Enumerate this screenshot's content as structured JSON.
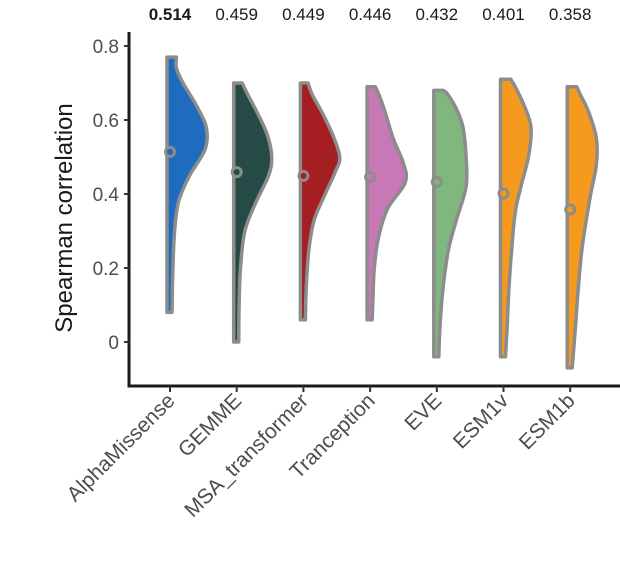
{
  "chart_data": {
    "type": "violin",
    "title": "",
    "xlabel": "",
    "ylabel": "Spearman correlation",
    "ylim": [
      -0.11,
      0.82
    ],
    "yticks": [
      0,
      0.2,
      0.4,
      0.6,
      0.8
    ],
    "ytick_labels": [
      "0",
      "0.2",
      "0.4",
      "0.6",
      "0.8"
    ],
    "grid": false,
    "legend": "none",
    "categories": [
      "AlphaMissense",
      "GEMME",
      "MSA_transformer",
      "Tranception",
      "EVE",
      "ESM1v",
      "ESM1b"
    ],
    "mean_labels": [
      "0.514",
      "0.459",
      "0.449",
      "0.446",
      "0.432",
      "0.401",
      "0.358"
    ],
    "bold_label_index": 0,
    "series": [
      {
        "name": "AlphaMissense",
        "color": "#1f6bbf",
        "mean": 0.514,
        "min": 0.08,
        "max": 0.77,
        "density": [
          [
            0.08,
            0.0
          ],
          [
            0.2,
            0.02
          ],
          [
            0.3,
            0.06
          ],
          [
            0.38,
            0.15
          ],
          [
            0.45,
            0.4
          ],
          [
            0.52,
            0.75
          ],
          [
            0.58,
            0.78
          ],
          [
            0.64,
            0.55
          ],
          [
            0.7,
            0.25
          ],
          [
            0.74,
            0.1
          ],
          [
            0.77,
            0.1
          ]
        ]
      },
      {
        "name": "GEMME",
        "color": "#264a46",
        "mean": 0.459,
        "min": 0.0,
        "max": 0.7,
        "density": [
          [
            0.0,
            0.0
          ],
          [
            0.1,
            0.01
          ],
          [
            0.2,
            0.04
          ],
          [
            0.3,
            0.14
          ],
          [
            0.38,
            0.4
          ],
          [
            0.45,
            0.68
          ],
          [
            0.5,
            0.75
          ],
          [
            0.56,
            0.65
          ],
          [
            0.62,
            0.42
          ],
          [
            0.67,
            0.2
          ],
          [
            0.7,
            0.08
          ]
        ]
      },
      {
        "name": "MSA_transformer",
        "color": "#a51e22",
        "mean": 0.449,
        "min": 0.06,
        "max": 0.7,
        "density": [
          [
            0.06,
            0.0
          ],
          [
            0.15,
            0.02
          ],
          [
            0.25,
            0.08
          ],
          [
            0.33,
            0.2
          ],
          [
            0.4,
            0.45
          ],
          [
            0.46,
            0.68
          ],
          [
            0.5,
            0.78
          ],
          [
            0.56,
            0.62
          ],
          [
            0.62,
            0.38
          ],
          [
            0.67,
            0.15
          ],
          [
            0.7,
            0.06
          ]
        ]
      },
      {
        "name": "Tranception",
        "color": "#c878b4",
        "mean": 0.446,
        "min": 0.06,
        "max": 0.69,
        "density": [
          [
            0.06,
            0.0
          ],
          [
            0.12,
            0.02
          ],
          [
            0.2,
            0.05
          ],
          [
            0.28,
            0.14
          ],
          [
            0.36,
            0.35
          ],
          [
            0.43,
            0.75
          ],
          [
            0.48,
            0.72
          ],
          [
            0.55,
            0.48
          ],
          [
            0.62,
            0.3
          ],
          [
            0.67,
            0.15
          ],
          [
            0.69,
            0.07
          ]
        ]
      },
      {
        "name": "EVE",
        "color": "#7fb77e",
        "mean": 0.432,
        "min": -0.04,
        "max": 0.68,
        "density": [
          [
            -0.04,
            0.0
          ],
          [
            0.05,
            0.03
          ],
          [
            0.15,
            0.1
          ],
          [
            0.25,
            0.22
          ],
          [
            0.33,
            0.4
          ],
          [
            0.42,
            0.62
          ],
          [
            0.5,
            0.62
          ],
          [
            0.58,
            0.55
          ],
          [
            0.63,
            0.4
          ],
          [
            0.67,
            0.2
          ],
          [
            0.68,
            0.1
          ]
        ]
      },
      {
        "name": "ESM1v",
        "color": "#f59a1f",
        "mean": 0.401,
        "min": -0.04,
        "max": 0.71,
        "density": [
          [
            -0.04,
            0.0
          ],
          [
            0.05,
            0.04
          ],
          [
            0.15,
            0.08
          ],
          [
            0.25,
            0.14
          ],
          [
            0.35,
            0.22
          ],
          [
            0.42,
            0.35
          ],
          [
            0.5,
            0.52
          ],
          [
            0.58,
            0.58
          ],
          [
            0.64,
            0.42
          ],
          [
            0.69,
            0.22
          ],
          [
            0.71,
            0.12
          ]
        ]
      },
      {
        "name": "ESM1b",
        "color": "#f59a1f",
        "mean": 0.358,
        "min": -0.07,
        "max": 0.69,
        "density": [
          [
            -0.07,
            0.0
          ],
          [
            0.05,
            0.08
          ],
          [
            0.15,
            0.14
          ],
          [
            0.25,
            0.22
          ],
          [
            0.33,
            0.32
          ],
          [
            0.4,
            0.42
          ],
          [
            0.48,
            0.55
          ],
          [
            0.55,
            0.55
          ],
          [
            0.62,
            0.38
          ],
          [
            0.67,
            0.18
          ],
          [
            0.69,
            0.1
          ]
        ]
      }
    ]
  }
}
